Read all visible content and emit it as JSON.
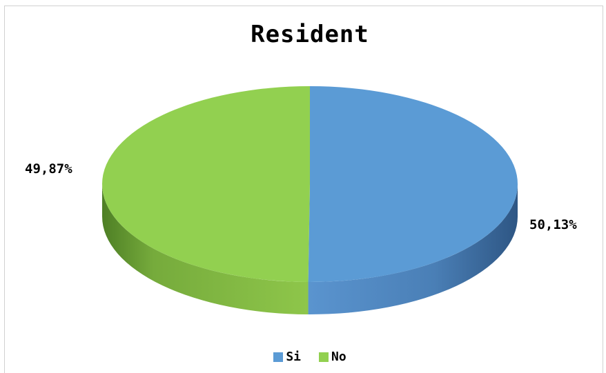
{
  "chart_data": {
    "type": "pie",
    "title": "Resident",
    "categories": [
      "Si",
      "No"
    ],
    "values": [
      50.13,
      49.87
    ],
    "labels": [
      "50,13%",
      "49,87%"
    ],
    "colors": [
      "#5b9bd5",
      "#92d050"
    ],
    "style": "3d",
    "legend_position": "bottom"
  }
}
